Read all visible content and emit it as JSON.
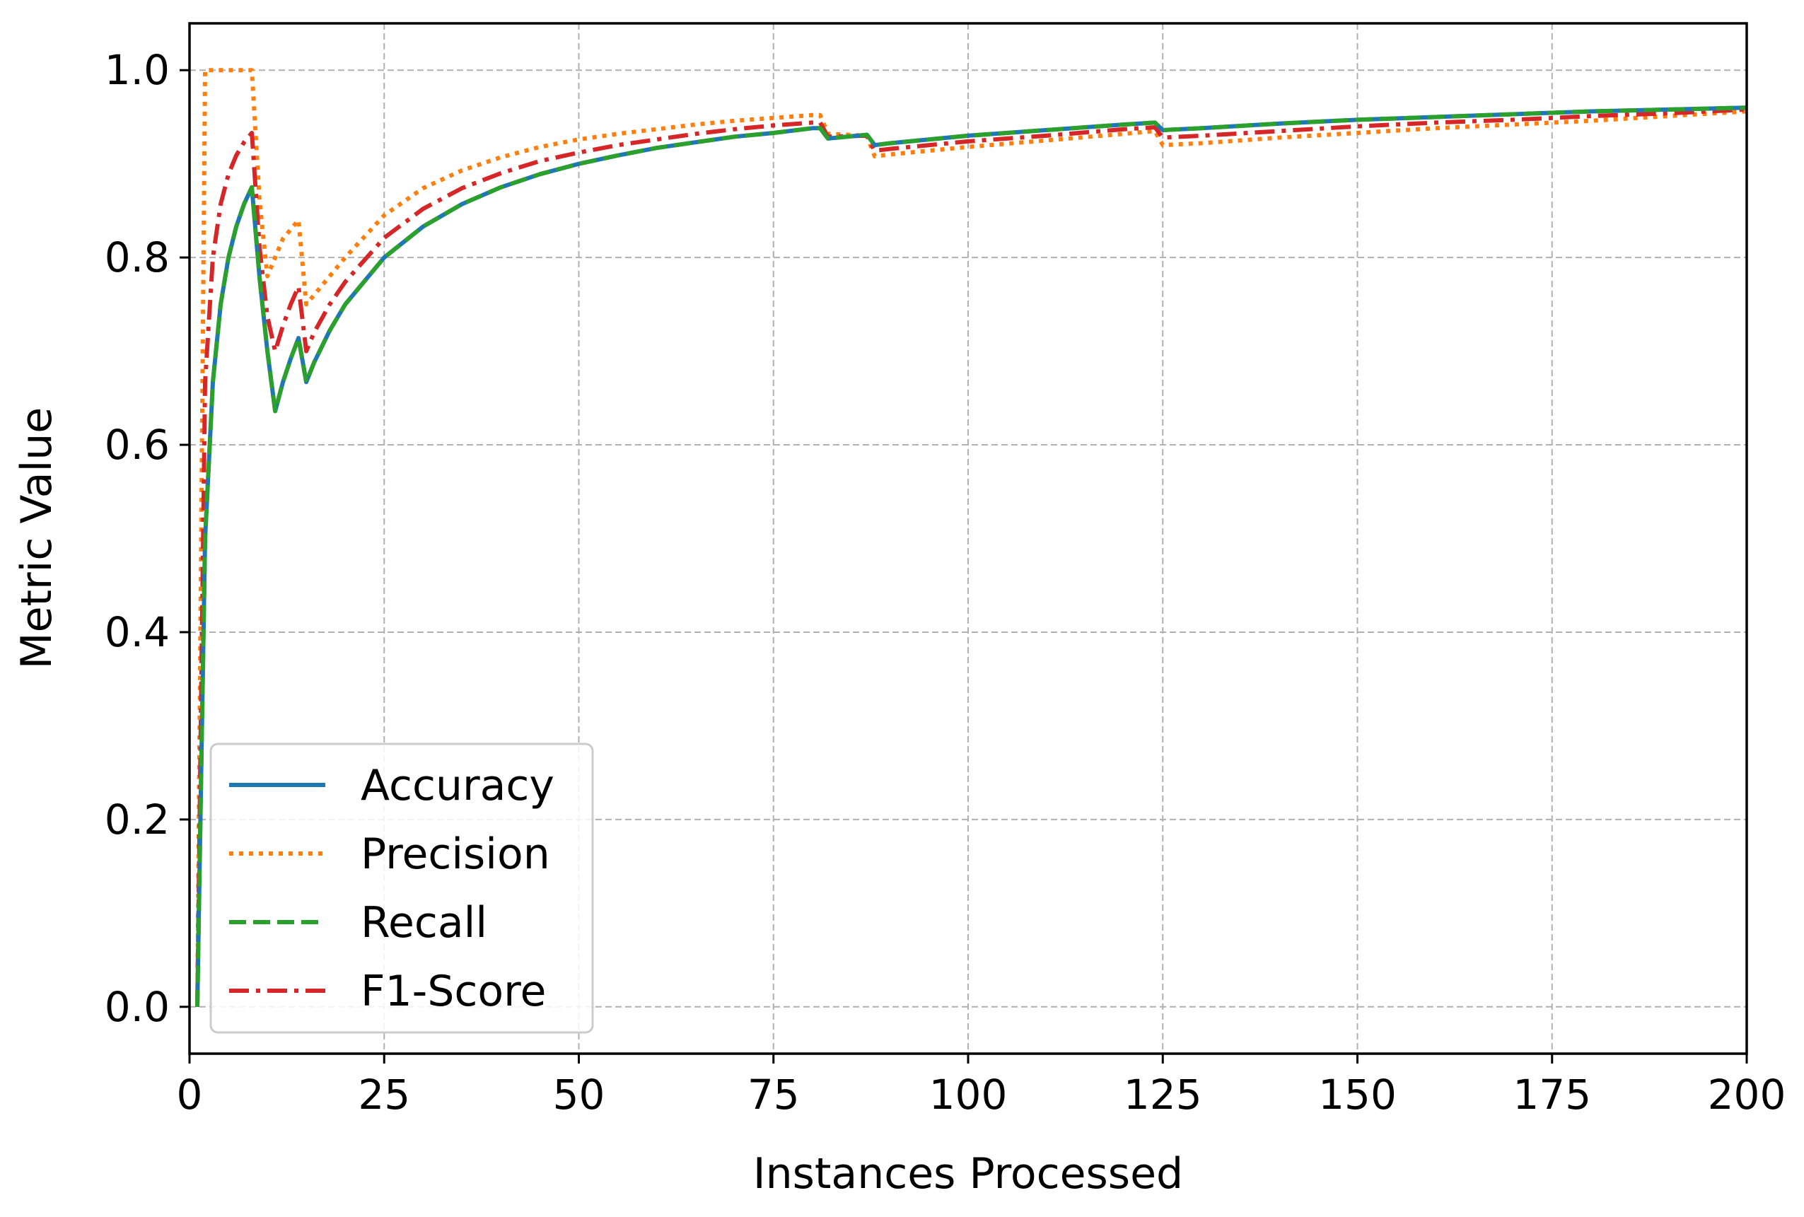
{
  "chart_data": {
    "type": "line",
    "title": "",
    "xlabel": "Instances Processed",
    "ylabel": "Metric Value",
    "xlim": [
      0,
      200
    ],
    "ylim": [
      -0.05,
      1.05
    ],
    "xticks": [
      0,
      25,
      50,
      75,
      100,
      125,
      150,
      175,
      200
    ],
    "yticks": [
      0.0,
      0.2,
      0.4,
      0.6,
      0.8,
      1.0
    ],
    "xtick_labels": [
      "0",
      "25",
      "50",
      "75",
      "100",
      "125",
      "150",
      "175",
      "200"
    ],
    "ytick_labels": [
      "0.0",
      "0.2",
      "0.4",
      "0.6",
      "0.8",
      "1.0"
    ],
    "grid": true,
    "legend_position": "lower-left",
    "series": [
      {
        "name": "Accuracy",
        "color": "#1f77b4",
        "style": "solid",
        "x": [
          1,
          2,
          3,
          4,
          5,
          6,
          7,
          8,
          9,
          10,
          11,
          12,
          13,
          14,
          15,
          16,
          18,
          20,
          25,
          30,
          35,
          40,
          45,
          50,
          55,
          60,
          65,
          70,
          75,
          80,
          81,
          82,
          87,
          88,
          90,
          100,
          110,
          120,
          124,
          125,
          130,
          140,
          150,
          160,
          170,
          180,
          190,
          200
        ],
        "y": [
          0.0,
          0.5,
          0.667,
          0.75,
          0.8,
          0.833,
          0.857,
          0.875,
          0.778,
          0.7,
          0.636,
          0.667,
          0.692,
          0.714,
          0.667,
          0.688,
          0.722,
          0.75,
          0.8,
          0.833,
          0.857,
          0.875,
          0.889,
          0.9,
          0.909,
          0.917,
          0.923,
          0.929,
          0.933,
          0.938,
          0.938,
          0.927,
          0.931,
          0.92,
          0.922,
          0.93,
          0.936,
          0.942,
          0.944,
          0.936,
          0.938,
          0.943,
          0.947,
          0.95,
          0.953,
          0.956,
          0.958,
          0.96
        ]
      },
      {
        "name": "Precision",
        "color": "#ff7f0e",
        "style": "dotted",
        "x": [
          1,
          2,
          3,
          4,
          5,
          6,
          7,
          8,
          9,
          10,
          11,
          12,
          13,
          14,
          15,
          16,
          18,
          20,
          25,
          30,
          35,
          40,
          45,
          50,
          55,
          60,
          65,
          70,
          75,
          80,
          81,
          82,
          87,
          88,
          90,
          100,
          110,
          120,
          124,
          125,
          130,
          140,
          150,
          160,
          170,
          180,
          190,
          200
        ],
        "y": [
          0.0,
          1.0,
          1.0,
          1.0,
          1.0,
          1.0,
          1.0,
          1.0,
          0.86,
          0.78,
          0.8,
          0.82,
          0.83,
          0.84,
          0.75,
          0.76,
          0.78,
          0.8,
          0.845,
          0.874,
          0.893,
          0.907,
          0.918,
          0.926,
          0.932,
          0.937,
          0.942,
          0.946,
          0.949,
          0.952,
          0.952,
          0.932,
          0.93,
          0.908,
          0.91,
          0.918,
          0.925,
          0.932,
          0.935,
          0.92,
          0.922,
          0.928,
          0.933,
          0.938,
          0.942,
          0.946,
          0.951,
          0.956
        ]
      },
      {
        "name": "Recall",
        "color": "#2ca02c",
        "style": "dashed",
        "x": [
          1,
          2,
          3,
          4,
          5,
          6,
          7,
          8,
          9,
          10,
          11,
          12,
          13,
          14,
          15,
          16,
          18,
          20,
          25,
          30,
          35,
          40,
          45,
          50,
          55,
          60,
          65,
          70,
          75,
          80,
          81,
          82,
          87,
          88,
          90,
          100,
          110,
          120,
          124,
          125,
          130,
          140,
          150,
          160,
          170,
          180,
          190,
          200
        ],
        "y": [
          0.0,
          0.5,
          0.667,
          0.75,
          0.8,
          0.833,
          0.857,
          0.875,
          0.778,
          0.7,
          0.636,
          0.667,
          0.692,
          0.714,
          0.667,
          0.688,
          0.722,
          0.75,
          0.8,
          0.833,
          0.857,
          0.875,
          0.889,
          0.9,
          0.909,
          0.917,
          0.923,
          0.929,
          0.933,
          0.938,
          0.938,
          0.927,
          0.931,
          0.92,
          0.922,
          0.93,
          0.936,
          0.942,
          0.944,
          0.936,
          0.938,
          0.943,
          0.947,
          0.95,
          0.953,
          0.956,
          0.958,
          0.96
        ]
      },
      {
        "name": "F1-Score",
        "color": "#d62728",
        "style": "dashdot",
        "x": [
          1,
          2,
          3,
          4,
          5,
          6,
          7,
          8,
          9,
          10,
          11,
          12,
          13,
          14,
          15,
          16,
          18,
          20,
          25,
          30,
          35,
          40,
          45,
          50,
          55,
          60,
          65,
          70,
          75,
          80,
          81,
          82,
          87,
          88,
          90,
          100,
          110,
          120,
          124,
          125,
          130,
          140,
          150,
          160,
          170,
          180,
          190,
          200
        ],
        "y": [
          0.0,
          0.667,
          0.8,
          0.857,
          0.889,
          0.909,
          0.923,
          0.933,
          0.81,
          0.737,
          0.7,
          0.727,
          0.75,
          0.769,
          0.7,
          0.72,
          0.75,
          0.774,
          0.821,
          0.852,
          0.874,
          0.89,
          0.903,
          0.912,
          0.92,
          0.926,
          0.932,
          0.937,
          0.941,
          0.944,
          0.944,
          0.929,
          0.93,
          0.914,
          0.916,
          0.924,
          0.93,
          0.937,
          0.939,
          0.928,
          0.93,
          0.935,
          0.94,
          0.944,
          0.947,
          0.951,
          0.954,
          0.958
        ]
      }
    ]
  }
}
